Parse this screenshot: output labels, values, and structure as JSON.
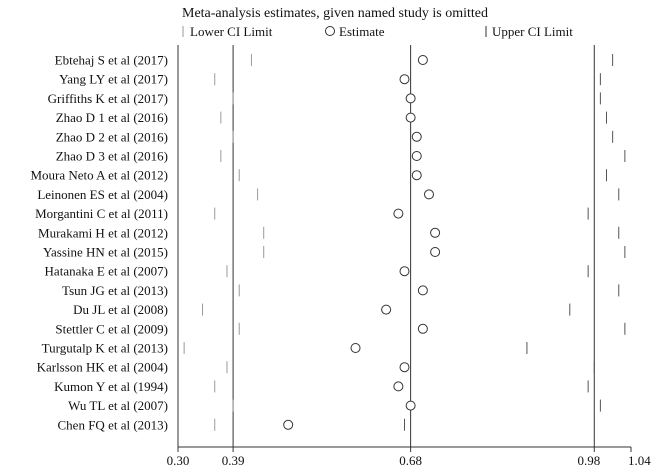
{
  "chart_data": {
    "type": "scatter",
    "title": "Meta-analysis estimates, given named study is omitted",
    "legend": {
      "position": "top",
      "items": [
        {
          "symbol": "|",
          "label": "Lower CI Limit"
        },
        {
          "symbol": "○",
          "label": "Estimate"
        },
        {
          "symbol": "|",
          "label": "Upper CI Limit"
        }
      ]
    },
    "x_axis": {
      "ticks": [
        0.3,
        0.39,
        0.68,
        0.98,
        1.04
      ],
      "tick_labels": [
        "0.30",
        "0.39",
        "0.68",
        "0.98",
        "1.04"
      ],
      "xlim": [
        0.3,
        1.04
      ],
      "reference_lines": [
        0.39,
        0.68,
        0.98
      ]
    },
    "studies": [
      {
        "label": "Ebtehaj S et al (2017)",
        "lower": 0.42,
        "estimate": 0.7,
        "upper": 1.01
      },
      {
        "label": "Yang LY et al (2017)",
        "lower": 0.36,
        "estimate": 0.67,
        "upper": 0.99
      },
      {
        "label": "Griffiths K et al (2017)",
        "lower": 0.39,
        "estimate": 0.68,
        "upper": 0.99
      },
      {
        "label": "Zhao D 1 et al (2016)",
        "lower": 0.37,
        "estimate": 0.68,
        "upper": 1.0
      },
      {
        "label": "Zhao D 2 et al (2016)",
        "lower": 0.39,
        "estimate": 0.69,
        "upper": 1.01
      },
      {
        "label": "Zhao D 3 et al (2016)",
        "lower": 0.37,
        "estimate": 0.69,
        "upper": 1.03
      },
      {
        "label": "Moura Neto A et al (2012)",
        "lower": 0.4,
        "estimate": 0.69,
        "upper": 1.0
      },
      {
        "label": "Leinonen ES et al (2004)",
        "lower": 0.43,
        "estimate": 0.71,
        "upper": 1.02
      },
      {
        "label": "Morgantini C et al (2011)",
        "lower": 0.36,
        "estimate": 0.66,
        "upper": 0.97
      },
      {
        "label": "Murakami H et al (2012)",
        "lower": 0.44,
        "estimate": 0.72,
        "upper": 1.02
      },
      {
        "label": "Yassine HN et al (2015)",
        "lower": 0.44,
        "estimate": 0.72,
        "upper": 1.03
      },
      {
        "label": "Hatanaka E et al (2007)",
        "lower": 0.38,
        "estimate": 0.67,
        "upper": 0.97
      },
      {
        "label": "Tsun JG et al (2013)",
        "lower": 0.4,
        "estimate": 0.7,
        "upper": 1.02
      },
      {
        "label": "Du JL et al (2008)",
        "lower": 0.34,
        "estimate": 0.64,
        "upper": 0.94
      },
      {
        "label": "Stettler C et al (2009)",
        "lower": 0.4,
        "estimate": 0.7,
        "upper": 1.03
      },
      {
        "label": "Turgutalp K et al (2013)",
        "lower": 0.31,
        "estimate": 0.59,
        "upper": 0.87
      },
      {
        "label": "Karlsson HK et al (2004)",
        "lower": 0.38,
        "estimate": 0.67,
        "upper": 0.98
      },
      {
        "label": "Kumon Y et al (1994)",
        "lower": 0.36,
        "estimate": 0.66,
        "upper": 0.97
      },
      {
        "label": "Wu TL et al (2007)",
        "lower": 0.39,
        "estimate": 0.68,
        "upper": 0.99
      },
      {
        "label": "Chen FQ et al (2013)",
        "lower": 0.36,
        "estimate": 0.48,
        "upper": 0.67
      }
    ]
  }
}
